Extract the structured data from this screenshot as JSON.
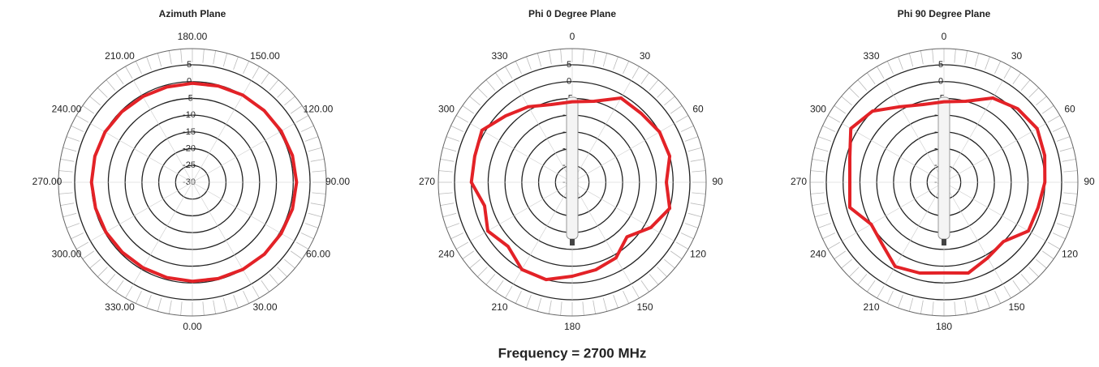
{
  "caption": "Frequency = 2700 MHz",
  "chart_data": [
    {
      "type": "polar",
      "title": "Azimuth Plane",
      "theta_zero": "bottom",
      "theta_direction": "counterclockwise",
      "thetaticks": [
        {
          "value": 0,
          "label": "0.00"
        },
        {
          "value": 30,
          "label": "30.00"
        },
        {
          "value": 60,
          "label": "60.00"
        },
        {
          "value": 90,
          "label": "90.00"
        },
        {
          "value": 120,
          "label": "120.00"
        },
        {
          "value": 150,
          "label": "150.00"
        },
        {
          "value": 180,
          "label": "180.00"
        },
        {
          "value": 210,
          "label": "210.00"
        },
        {
          "value": 240,
          "label": "240.00"
        },
        {
          "value": 270,
          "label": "270.00"
        },
        {
          "value": 300,
          "label": "300.00"
        },
        {
          "value": 330,
          "label": "330.00"
        }
      ],
      "rlim": [
        -30,
        5
      ],
      "rticks": [
        5,
        0,
        -5,
        -10,
        -15,
        -20,
        -25,
        -30
      ],
      "color": "#e32227",
      "theta": [
        0,
        15,
        30,
        45,
        60,
        75,
        90,
        105,
        120,
        135,
        150,
        165,
        180,
        195,
        210,
        225,
        240,
        255,
        270,
        285,
        300,
        315,
        330,
        345
      ],
      "values": [
        -0.5,
        -0.3,
        0,
        0.3,
        0.5,
        0.8,
        1,
        0.8,
        0.5,
        0.2,
        0,
        -0.3,
        -0.5,
        -0.6,
        -0.5,
        -0.3,
        0,
        0,
        0,
        -0.2,
        -0.3,
        -0.5,
        -0.6,
        -0.6
      ]
    },
    {
      "type": "polar",
      "title": "Phi 0 Degree Plane",
      "theta_zero": "top",
      "theta_direction": "clockwise",
      "thetaticks": [
        0,
        30,
        60,
        90,
        120,
        150,
        180,
        210,
        240,
        270,
        300,
        330
      ],
      "rlim": [
        -30,
        5
      ],
      "rticks": [
        5,
        0,
        -5,
        -10,
        -15,
        -20,
        -25,
        -30
      ],
      "color": "#e32227",
      "theta": [
        0,
        15,
        30,
        45,
        60,
        75,
        90,
        105,
        120,
        135,
        150,
        165,
        180,
        195,
        210,
        225,
        240,
        255,
        270,
        285,
        300,
        315,
        330,
        345
      ],
      "values": [
        -6,
        -5,
        -1,
        -1,
        0,
        0,
        -2,
        0,
        -3,
        -7,
        -4,
        -3,
        -2,
        0,
        0,
        -3,
        -1,
        -3,
        0,
        0,
        1,
        -2,
        -4,
        -6
      ]
    },
    {
      "type": "polar",
      "title": "Phi 90 Degree Plane",
      "theta_zero": "top",
      "theta_direction": "clockwise",
      "thetaticks": [
        0,
        30,
        60,
        90,
        120,
        150,
        180,
        210,
        240,
        270,
        300,
        330
      ],
      "rlim": [
        -30,
        5
      ],
      "rticks": [
        5,
        0,
        -5,
        -10,
        -15,
        -20,
        -25,
        -30
      ],
      "color": "#e32227",
      "theta": [
        0,
        15,
        30,
        45,
        60,
        75,
        90,
        105,
        120,
        135,
        150,
        165,
        180,
        195,
        210,
        225,
        240,
        255,
        270,
        285,
        300,
        315,
        330,
        345
      ],
      "values": [
        -6,
        -5,
        -1,
        1,
        2,
        1,
        0,
        -1,
        -1,
        -5,
        -4,
        -2,
        -3,
        -2,
        -1,
        -4,
        -5,
        -1,
        -2,
        -1,
        2,
        0,
        -4,
        -6
      ]
    }
  ]
}
